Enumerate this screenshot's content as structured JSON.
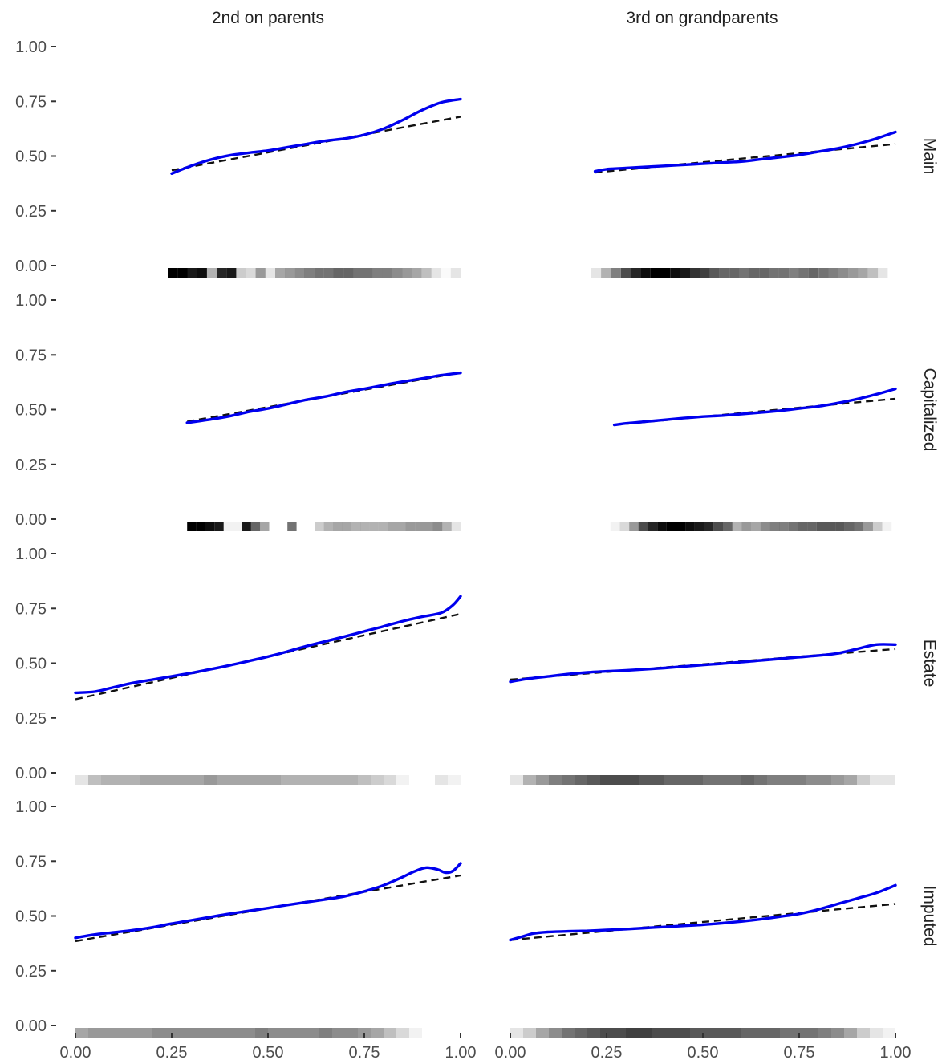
{
  "chart_data": {
    "type": "line",
    "columns": [
      "2nd on parents",
      "3rd on grandparents"
    ],
    "rows": [
      "Main",
      "Capitalized",
      "Estate",
      "Imputed"
    ],
    "xlim": [
      0,
      1
    ],
    "ylim": [
      0,
      1
    ],
    "x_ticks": [
      "0.00",
      "0.25",
      "0.50",
      "0.75",
      "1.00"
    ],
    "y_ticks": [
      "0.00",
      "0.25",
      "0.50",
      "0.75",
      "1.00"
    ],
    "grid": false,
    "colors": {
      "fit": "#0000ee",
      "reference": "#111111",
      "rug": "#000000"
    },
    "panels": [
      {
        "row": "Main",
        "column": "2nd on parents",
        "fit": {
          "x": [
            0.25,
            0.3,
            0.35,
            0.4,
            0.45,
            0.5,
            0.55,
            0.6,
            0.65,
            0.7,
            0.75,
            0.8,
            0.85,
            0.9,
            0.95,
            1.0
          ],
          "y": [
            0.42,
            0.455,
            0.483,
            0.503,
            0.515,
            0.525,
            0.54,
            0.555,
            0.57,
            0.58,
            0.597,
            0.625,
            0.665,
            0.71,
            0.745,
            0.76
          ]
        },
        "reference": {
          "x": [
            0.25,
            1.0
          ],
          "y": [
            0.435,
            0.68
          ]
        },
        "rug": {
          "from": 0.24,
          "to": 1.0,
          "density": [
            1.0,
            1.0,
            0.9,
            0.95,
            0.3,
            0.85,
            0.9,
            0.2,
            0.15,
            0.4,
            0.1,
            0.35,
            0.4,
            0.45,
            0.5,
            0.55,
            0.55,
            0.6,
            0.6,
            0.55,
            0.55,
            0.5,
            0.5,
            0.45,
            0.4,
            0.35,
            0.25,
            0.1,
            0.02,
            0.1
          ]
        }
      },
      {
        "row": "Main",
        "column": "3rd on grandparents",
        "fit": {
          "x": [
            0.22,
            0.25,
            0.3,
            0.35,
            0.4,
            0.45,
            0.5,
            0.55,
            0.6,
            0.65,
            0.7,
            0.75,
            0.8,
            0.85,
            0.9,
            0.95,
            1.0
          ],
          "y": [
            0.43,
            0.44,
            0.445,
            0.45,
            0.455,
            0.46,
            0.465,
            0.47,
            0.475,
            0.485,
            0.495,
            0.505,
            0.52,
            0.535,
            0.555,
            0.58,
            0.61
          ]
        },
        "reference": {
          "x": [
            0.22,
            1.0
          ],
          "y": [
            0.425,
            0.555
          ]
        },
        "rug": {
          "from": 0.21,
          "to": 0.98,
          "density": [
            0.1,
            0.3,
            0.5,
            0.7,
            0.85,
            0.95,
            1.0,
            1.0,
            0.95,
            0.9,
            0.8,
            0.75,
            0.65,
            0.6,
            0.6,
            0.55,
            0.6,
            0.6,
            0.55,
            0.55,
            0.5,
            0.55,
            0.6,
            0.55,
            0.5,
            0.45,
            0.4,
            0.35,
            0.25,
            0.1
          ]
        }
      },
      {
        "row": "Capitalized",
        "column": "2nd on parents",
        "fit": {
          "x": [
            0.29,
            0.35,
            0.4,
            0.45,
            0.5,
            0.55,
            0.6,
            0.65,
            0.7,
            0.75,
            0.8,
            0.85,
            0.9,
            0.95,
            1.0
          ],
          "y": [
            0.44,
            0.455,
            0.47,
            0.49,
            0.505,
            0.525,
            0.545,
            0.56,
            0.58,
            0.595,
            0.612,
            0.628,
            0.642,
            0.657,
            0.668
          ]
        },
        "reference": {
          "x": [
            0.29,
            1.0
          ],
          "y": [
            0.445,
            0.67
          ]
        },
        "rug": {
          "from": 0.29,
          "to": 1.0,
          "density": [
            1.0,
            1.0,
            0.95,
            0.9,
            0.05,
            0.05,
            0.9,
            0.6,
            0.35,
            0.0,
            0.0,
            0.55,
            0.0,
            0.0,
            0.2,
            0.3,
            0.35,
            0.35,
            0.3,
            0.3,
            0.3,
            0.3,
            0.35,
            0.35,
            0.4,
            0.4,
            0.4,
            0.45,
            0.3,
            0.1
          ]
        }
      },
      {
        "row": "Capitalized",
        "column": "3rd on grandparents",
        "fit": {
          "x": [
            0.27,
            0.3,
            0.35,
            0.4,
            0.45,
            0.5,
            0.55,
            0.6,
            0.65,
            0.7,
            0.75,
            0.8,
            0.85,
            0.9,
            0.95,
            1.0
          ],
          "y": [
            0.43,
            0.437,
            0.445,
            0.453,
            0.461,
            0.468,
            0.473,
            0.48,
            0.487,
            0.495,
            0.505,
            0.515,
            0.53,
            0.548,
            0.57,
            0.595
          ]
        },
        "reference": {
          "x": [
            0.27,
            1.0
          ],
          "y": [
            0.43,
            0.55
          ]
        },
        "rug": {
          "from": 0.26,
          "to": 0.99,
          "density": [
            0.05,
            0.15,
            0.4,
            0.7,
            0.85,
            0.95,
            1.0,
            1.0,
            0.95,
            0.9,
            0.85,
            0.7,
            0.6,
            0.3,
            0.4,
            0.35,
            0.45,
            0.5,
            0.5,
            0.55,
            0.6,
            0.6,
            0.65,
            0.65,
            0.65,
            0.6,
            0.55,
            0.4,
            0.2,
            0.05
          ]
        }
      },
      {
        "row": "Estate",
        "column": "2nd on parents",
        "fit": {
          "x": [
            0.0,
            0.05,
            0.1,
            0.15,
            0.2,
            0.25,
            0.3,
            0.35,
            0.4,
            0.45,
            0.5,
            0.55,
            0.6,
            0.65,
            0.7,
            0.75,
            0.8,
            0.85,
            0.9,
            0.95,
            0.98,
            1.0
          ],
          "y": [
            0.365,
            0.37,
            0.39,
            0.41,
            0.425,
            0.44,
            0.455,
            0.472,
            0.49,
            0.51,
            0.53,
            0.553,
            0.578,
            0.6,
            0.622,
            0.645,
            0.668,
            0.692,
            0.712,
            0.73,
            0.765,
            0.805
          ]
        },
        "reference": {
          "x": [
            0.0,
            1.0
          ],
          "y": [
            0.335,
            0.725
          ]
        },
        "rug": {
          "from": 0.0,
          "to": 1.0,
          "density": [
            0.1,
            0.25,
            0.3,
            0.3,
            0.3,
            0.35,
            0.35,
            0.35,
            0.35,
            0.35,
            0.4,
            0.35,
            0.35,
            0.35,
            0.35,
            0.35,
            0.3,
            0.3,
            0.3,
            0.3,
            0.3,
            0.3,
            0.25,
            0.2,
            0.15,
            0.05,
            0.0,
            0.0,
            0.1,
            0.05
          ]
        }
      },
      {
        "row": "Estate",
        "column": "3rd on grandparents",
        "fit": {
          "x": [
            0.0,
            0.05,
            0.1,
            0.15,
            0.2,
            0.25,
            0.3,
            0.35,
            0.4,
            0.45,
            0.5,
            0.55,
            0.6,
            0.65,
            0.7,
            0.75,
            0.8,
            0.85,
            0.9,
            0.95,
            1.0
          ],
          "y": [
            0.415,
            0.43,
            0.44,
            0.45,
            0.458,
            0.463,
            0.467,
            0.472,
            0.478,
            0.485,
            0.492,
            0.498,
            0.505,
            0.513,
            0.52,
            0.528,
            0.535,
            0.545,
            0.565,
            0.585,
            0.585
          ]
        },
        "reference": {
          "x": [
            0.0,
            1.0
          ],
          "y": [
            0.425,
            0.565
          ]
        },
        "rug": {
          "from": 0.0,
          "to": 1.0,
          "density": [
            0.1,
            0.3,
            0.4,
            0.5,
            0.55,
            0.6,
            0.65,
            0.7,
            0.7,
            0.7,
            0.65,
            0.65,
            0.6,
            0.6,
            0.6,
            0.55,
            0.55,
            0.55,
            0.6,
            0.55,
            0.5,
            0.5,
            0.5,
            0.45,
            0.45,
            0.4,
            0.35,
            0.2,
            0.1,
            0.1
          ]
        }
      },
      {
        "row": "Imputed",
        "column": "2nd on parents",
        "fit": {
          "x": [
            0.0,
            0.05,
            0.1,
            0.15,
            0.2,
            0.25,
            0.3,
            0.35,
            0.4,
            0.45,
            0.5,
            0.55,
            0.6,
            0.65,
            0.7,
            0.75,
            0.8,
            0.85,
            0.88,
            0.91,
            0.94,
            0.96,
            0.98,
            1.0
          ],
          "y": [
            0.4,
            0.415,
            0.425,
            0.435,
            0.448,
            0.465,
            0.48,
            0.495,
            0.51,
            0.523,
            0.536,
            0.55,
            0.563,
            0.576,
            0.59,
            0.612,
            0.64,
            0.678,
            0.703,
            0.72,
            0.712,
            0.698,
            0.705,
            0.74
          ]
        },
        "reference": {
          "x": [
            0.0,
            1.0
          ],
          "y": [
            0.385,
            0.685
          ]
        },
        "rug": {
          "from": 0.0,
          "to": 1.0,
          "density": [
            0.35,
            0.4,
            0.4,
            0.4,
            0.4,
            0.4,
            0.45,
            0.45,
            0.45,
            0.45,
            0.45,
            0.45,
            0.45,
            0.45,
            0.5,
            0.45,
            0.45,
            0.45,
            0.45,
            0.5,
            0.45,
            0.45,
            0.4,
            0.35,
            0.25,
            0.15,
            0.05,
            0.0,
            0.0,
            0.0
          ]
        }
      },
      {
        "row": "Imputed",
        "column": "3rd on grandparents",
        "fit": {
          "x": [
            0.0,
            0.03,
            0.06,
            0.1,
            0.15,
            0.2,
            0.25,
            0.3,
            0.35,
            0.4,
            0.45,
            0.5,
            0.55,
            0.6,
            0.65,
            0.7,
            0.75,
            0.8,
            0.85,
            0.9,
            0.95,
            1.0
          ],
          "y": [
            0.39,
            0.405,
            0.42,
            0.427,
            0.43,
            0.432,
            0.436,
            0.44,
            0.445,
            0.45,
            0.455,
            0.46,
            0.467,
            0.475,
            0.485,
            0.497,
            0.51,
            0.53,
            0.555,
            0.58,
            0.605,
            0.64
          ]
        },
        "reference": {
          "x": [
            0.0,
            1.0
          ],
          "y": [
            0.39,
            0.555
          ]
        },
        "rug": {
          "from": 0.0,
          "to": 1.0,
          "density": [
            0.1,
            0.2,
            0.35,
            0.45,
            0.55,
            0.6,
            0.65,
            0.7,
            0.7,
            0.75,
            0.75,
            0.7,
            0.7,
            0.7,
            0.65,
            0.65,
            0.65,
            0.65,
            0.6,
            0.6,
            0.6,
            0.55,
            0.55,
            0.55,
            0.5,
            0.45,
            0.35,
            0.2,
            0.1,
            0.05
          ]
        }
      }
    ]
  }
}
